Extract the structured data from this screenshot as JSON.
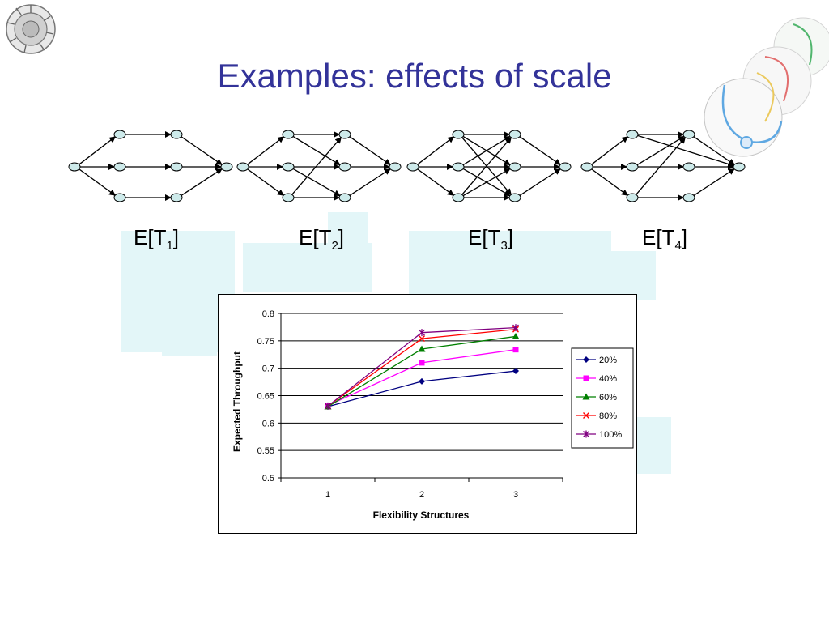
{
  "slide": {
    "title": "Examples: effects of scale",
    "labels": [
      {
        "base": "E[T",
        "sub": "1",
        "close": "]"
      },
      {
        "base": "E[T",
        "sub": "2",
        "close": "]"
      },
      {
        "base": "E[T",
        "sub": "3",
        "close": "]"
      },
      {
        "base": "E[T",
        "sub": "4",
        "close": "]"
      }
    ]
  },
  "chart_data": {
    "type": "line",
    "x": [
      "1",
      "2",
      "3"
    ],
    "xlabel": "Flexibility Structures",
    "ylabel": "Expected Throughput",
    "ylim": [
      0.5,
      0.8
    ],
    "yticks": [
      "0.5",
      "0.55",
      "0.6",
      "0.65",
      "0.7",
      "0.75",
      "0.8"
    ],
    "grid": true,
    "legend": "right",
    "series": [
      {
        "name": "20%",
        "values": [
          0.63,
          0.676,
          0.695
        ],
        "color": "#000080",
        "marker": "diamond"
      },
      {
        "name": "40%",
        "values": [
          0.632,
          0.71,
          0.734
        ],
        "color": "#ff00ff",
        "marker": "square"
      },
      {
        "name": "60%",
        "values": [
          0.63,
          0.735,
          0.758
        ],
        "color": "#008000",
        "marker": "triangle"
      },
      {
        "name": "80%",
        "values": [
          0.631,
          0.754,
          0.771
        ],
        "color": "#ff0000",
        "marker": "x"
      },
      {
        "name": "100%",
        "values": [
          0.631,
          0.765,
          0.774
        ],
        "color": "#800080",
        "marker": "star"
      }
    ]
  }
}
